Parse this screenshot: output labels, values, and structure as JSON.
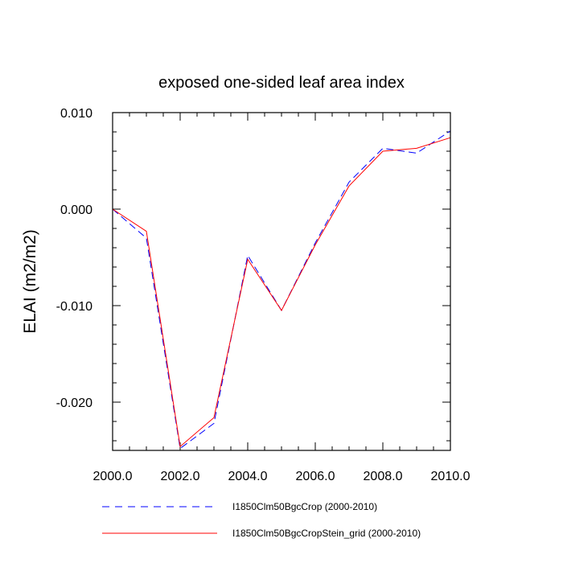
{
  "chart_data": {
    "type": "line",
    "title": "exposed one-sided leaf area index",
    "xlabel": "",
    "ylabel": "ELAI  (m2/m2)",
    "xlim": [
      2000.0,
      2010.0
    ],
    "ylim": [
      -0.025,
      0.01
    ],
    "x_ticks": [
      2000,
      2002,
      2004,
      2006,
      2008,
      2010
    ],
    "x_tick_labels": [
      "2000.0",
      "2002.0",
      "2004.0",
      "2006.0",
      "2008.0",
      "2010.0"
    ],
    "y_ticks": [
      0.01,
      0.0,
      -0.01,
      -0.02
    ],
    "y_tick_labels": [
      "0.010",
      "0.000",
      "-0.010",
      "-0.020"
    ],
    "grid": false,
    "legend_position": "bottom",
    "x": [
      2000,
      2001,
      2002,
      2003,
      2004,
      2005,
      2006,
      2007,
      2008,
      2009,
      2010
    ],
    "series": [
      {
        "name": "I1850Clm50BgcCrop (2000-2010)",
        "color": "#0000ff",
        "dash": "dashed",
        "values": [
          0.0,
          -0.003,
          -0.0248,
          -0.0222,
          -0.0048,
          -0.0105,
          -0.0035,
          0.0028,
          0.0063,
          0.0058,
          0.0081
        ]
      },
      {
        "name": "I1850Clm50BgcCropStein_grid (2000-2010)",
        "color": "#ff0000",
        "dash": "solid",
        "values": [
          0.0,
          -0.0023,
          -0.0246,
          -0.0216,
          -0.0052,
          -0.0105,
          -0.0037,
          0.0024,
          0.006,
          0.0063,
          0.0074
        ]
      }
    ]
  }
}
